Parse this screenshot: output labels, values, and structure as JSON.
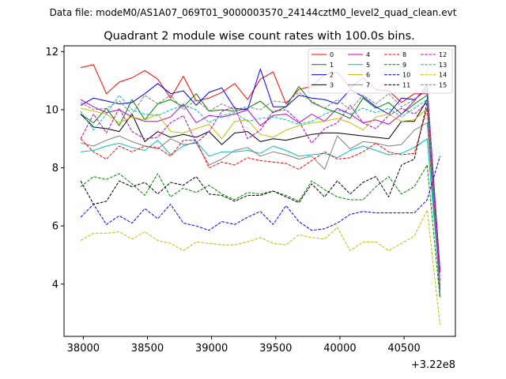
{
  "header": {
    "file_label": "Data file: modeM0/AS1A07_069T01_9000003570_24144cztM0_level2_quad_clean.evt"
  },
  "chart_data": {
    "type": "line",
    "title": "Quadrant 2 module wise count rates with 100.0s bins.",
    "xlabel": "",
    "ylabel": "",
    "x_offset_label": "+3.22e8",
    "xlim": [
      37850,
      40900
    ],
    "ylim": [
      2.2,
      12.2
    ],
    "x_ticks": [
      38000,
      38500,
      39000,
      39500,
      40000,
      40500
    ],
    "x_tick_labels": [
      "38000",
      "38500",
      "39000",
      "39500",
      "40000",
      "40500"
    ],
    "y_ticks": [
      4,
      6,
      8,
      10,
      12
    ],
    "y_tick_labels": [
      "4",
      "6",
      "8",
      "10",
      "12"
    ],
    "grid": false,
    "legend_position": "top-right",
    "x": [
      37980,
      38080,
      38180,
      38280,
      38380,
      38480,
      38580,
      38680,
      38780,
      38880,
      38980,
      39080,
      39180,
      39280,
      39380,
      39480,
      39580,
      39680,
      39780,
      39880,
      39980,
      40080,
      40180,
      40280,
      40380,
      40480,
      40580,
      40680,
      40780
    ],
    "series": [
      {
        "name": "0",
        "color": "#ff0000",
        "dash": "solid",
        "values": [
          11.45,
          11.55,
          10.55,
          10.95,
          11.1,
          11.35,
          11.05,
          10.4,
          11.15,
          10.3,
          10.4,
          10.6,
          10.9,
          10.35,
          11.05,
          11.3,
          10.2,
          10.7,
          10.8,
          11.2,
          11.3,
          10.75,
          11.1,
          10.7,
          10.65,
          10.25,
          10.55,
          10.55,
          3.9
        ]
      },
      {
        "name": "1",
        "color": "#008000",
        "dash": "solid",
        "values": [
          9.85,
          9.55,
          10.05,
          9.45,
          10.35,
          9.65,
          10.2,
          10.35,
          10.1,
          10.55,
          9.95,
          10.0,
          9.95,
          10.05,
          10.3,
          9.9,
          10.1,
          10.8,
          10.25,
          10.05,
          9.9,
          9.7,
          10.4,
          10.05,
          10.25,
          9.85,
          10.2,
          10.5,
          3.8
        ]
      },
      {
        "name": "2",
        "color": "#0000ff",
        "dash": "solid",
        "values": [
          10.15,
          10.4,
          10.3,
          10.2,
          10.25,
          10.55,
          10.9,
          10.55,
          10.65,
          10.15,
          10.6,
          10.75,
          10.05,
          10.0,
          11.4,
          10.1,
          10.1,
          10.5,
          10.4,
          10.35,
          10.2,
          10.7,
          10.45,
          10.1,
          9.85,
          10.4,
          10.35,
          10.7,
          4.5
        ]
      },
      {
        "name": "3",
        "color": "#000000",
        "dash": "solid",
        "values": [
          9.85,
          9.4,
          9.35,
          9.25,
          9.85,
          8.9,
          9.25,
          9.05,
          9.15,
          9.05,
          9.25,
          8.8,
          9.2,
          9.25,
          8.9,
          9.0,
          8.95,
          9.05,
          9.15,
          9.2,
          9.2,
          9.15,
          9.1,
          9.05,
          9.0,
          9.6,
          9.6,
          10.35,
          3.6
        ]
      },
      {
        "name": "4",
        "color": "#bf00bf",
        "dash": "solid",
        "values": [
          10.35,
          10.1,
          9.9,
          10.0,
          9.75,
          9.6,
          9.6,
          9.75,
          10.2,
          9.55,
          9.8,
          9.75,
          9.85,
          10.0,
          9.45,
          9.8,
          9.85,
          9.55,
          9.85,
          9.6,
          10.05,
          9.85,
          9.55,
          9.65,
          9.5,
          9.85,
          10.3,
          10.85,
          4.4
        ]
      },
      {
        "name": "5",
        "color": "#00bfbf",
        "dash": "solid",
        "values": [
          8.55,
          8.6,
          8.75,
          8.85,
          8.7,
          8.6,
          8.95,
          8.45,
          8.75,
          8.9,
          8.4,
          8.55,
          8.55,
          8.6,
          8.5,
          8.75,
          8.6,
          8.4,
          8.45,
          8.5,
          8.35,
          8.6,
          8.75,
          8.6,
          8.45,
          8.5,
          8.7,
          9.0,
          3.9
        ]
      },
      {
        "name": "6",
        "color": "#bfbf00",
        "dash": "solid",
        "values": [
          10.05,
          9.95,
          9.85,
          9.55,
          9.75,
          9.65,
          9.85,
          9.25,
          9.2,
          9.35,
          9.5,
          9.0,
          9.6,
          9.65,
          9.15,
          9.05,
          9.3,
          9.45,
          9.55,
          9.6,
          9.7,
          9.55,
          9.3,
          9.75,
          9.85,
          9.6,
          9.65,
          10.05,
          3.8
        ]
      },
      {
        "name": "7",
        "color": "#808080",
        "dash": "solid",
        "values": [
          8.85,
          8.75,
          8.95,
          9.1,
          8.9,
          8.75,
          8.65,
          9.0,
          8.8,
          8.85,
          8.1,
          8.3,
          8.6,
          8.7,
          8.4,
          8.55,
          8.45,
          8.3,
          8.4,
          7.95,
          9.1,
          8.65,
          8.9,
          8.85,
          8.75,
          8.8,
          9.3,
          9.55,
          3.9
        ]
      },
      {
        "name": "8",
        "color": "#ff0000",
        "dash": "dashed",
        "values": [
          9.0,
          8.55,
          8.3,
          8.75,
          8.55,
          8.75,
          8.7,
          8.4,
          8.95,
          8.95,
          8.0,
          8.2,
          8.1,
          8.35,
          8.25,
          8.2,
          8.15,
          7.95,
          8.25,
          8.55,
          8.3,
          8.35,
          8.55,
          8.85,
          8.55,
          8.45,
          8.5,
          10.05,
          3.7
        ]
      },
      {
        "name": "9",
        "color": "#008000",
        "dash": "dashed",
        "values": [
          7.35,
          7.7,
          7.6,
          7.8,
          7.45,
          7.05,
          7.8,
          7.0,
          7.3,
          7.15,
          7.4,
          7.1,
          6.9,
          7.15,
          7.1,
          7.2,
          7.05,
          6.85,
          7.55,
          7.25,
          7.0,
          6.9,
          6.9,
          7.35,
          7.7,
          7.1,
          7.35,
          8.1,
          3.5
        ]
      },
      {
        "name": "10",
        "color": "#0000ff",
        "dash": "dashed",
        "values": [
          6.3,
          6.75,
          6.05,
          6.35,
          6.1,
          6.6,
          6.25,
          6.75,
          6.1,
          6.0,
          5.85,
          6.15,
          6.05,
          6.3,
          6.5,
          6.05,
          6.7,
          6.15,
          5.85,
          5.9,
          6.1,
          6.4,
          6.5,
          6.45,
          6.45,
          6.45,
          6.45,
          6.9,
          8.4
        ]
      },
      {
        "name": "11",
        "color": "#000000",
        "dash": "dashed",
        "values": [
          7.55,
          6.75,
          6.85,
          7.55,
          7.35,
          7.5,
          7.1,
          7.5,
          7.4,
          7.7,
          7.1,
          7.05,
          6.85,
          7.05,
          7.05,
          7.2,
          7.0,
          6.8,
          7.45,
          7.0,
          7.55,
          7.1,
          7.5,
          7.7,
          7.0,
          8.1,
          8.3,
          10.25,
          3.8
        ]
      },
      {
        "name": "12",
        "color": "#bf00bf",
        "dash": "dashed",
        "values": [
          9.0,
          9.85,
          9.2,
          10.05,
          9.25,
          9.0,
          9.05,
          9.55,
          9.8,
          8.85,
          9.25,
          9.95,
          10.1,
          9.0,
          9.3,
          9.95,
          10.0,
          9.6,
          8.85,
          9.35,
          9.55,
          10.15,
          9.55,
          9.35,
          9.8,
          10.05,
          9.85,
          10.25,
          4.1
        ]
      },
      {
        "name": "13",
        "color": "#00bfbf",
        "dash": "dashed",
        "values": [
          9.95,
          9.3,
          9.85,
          10.5,
          10.0,
          9.85,
          9.8,
          10.0,
          10.15,
          10.0,
          9.55,
          9.8,
          9.9,
          9.6,
          9.7,
          9.75,
          9.65,
          9.5,
          9.6,
          9.85,
          10.0,
          9.85,
          10.05,
          9.9,
          10.05,
          9.75,
          10.05,
          10.35,
          3.6
        ]
      },
      {
        "name": "14",
        "color": "#bfbf00",
        "dash": "dashed",
        "values": [
          5.5,
          5.75,
          5.75,
          5.8,
          5.55,
          5.8,
          5.5,
          5.4,
          5.15,
          5.45,
          5.4,
          5.35,
          5.35,
          5.45,
          5.6,
          5.4,
          5.35,
          5.7,
          5.6,
          5.55,
          5.95,
          5.15,
          5.45,
          5.45,
          5.15,
          5.4,
          5.65,
          6.55,
          2.6
        ]
      },
      {
        "name": "15",
        "color": "#808080",
        "dash": "dashed",
        "values": [
          10.25,
          10.0,
          10.05,
          10.3,
          9.85,
          10.5,
          10.2,
          10.5,
          10.0,
          10.35,
          9.95,
          10.2,
          10.0,
          10.1,
          10.0,
          10.3,
          10.25,
          10.6,
          10.3,
          10.05,
          10.35,
          10.0,
          10.5,
          10.2,
          10.55,
          10.1,
          10.35,
          10.8,
          3.7
        ]
      }
    ]
  }
}
